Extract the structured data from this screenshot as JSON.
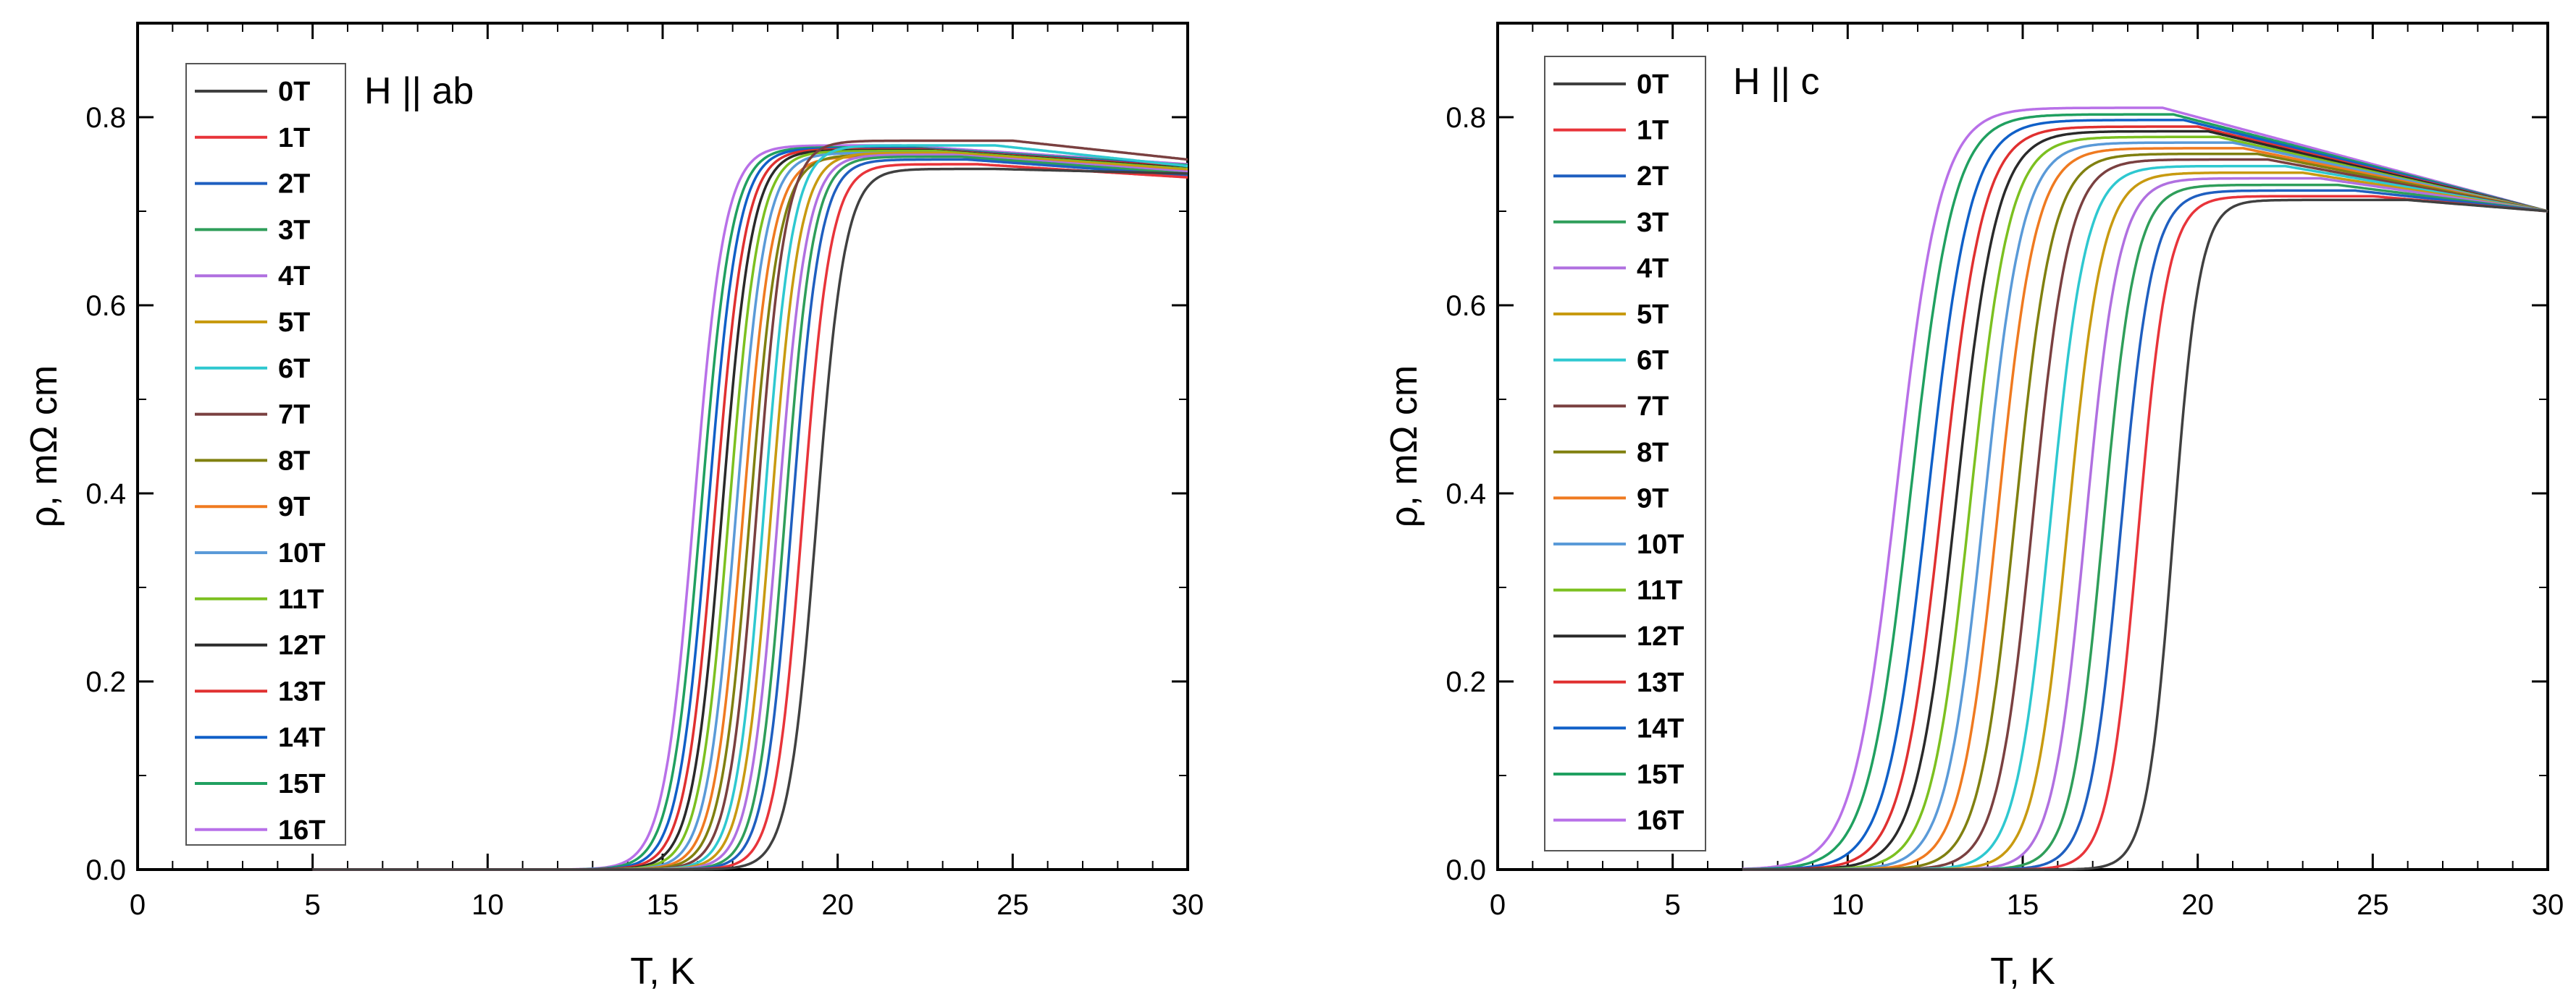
{
  "chart_data": [
    {
      "type": "line",
      "panel_id": "left",
      "title": "H || ab",
      "xlabel": "T, K",
      "ylabel": "ρ, mΩ cm",
      "xlim": [
        0,
        30
      ],
      "ylim": [
        0,
        0.9
      ],
      "xticks": [
        0,
        5,
        10,
        15,
        20,
        25,
        30
      ],
      "yticks": [
        0.0,
        0.2,
        0.4,
        0.6,
        0.8
      ],
      "xtick_labels": [
        "0",
        "5",
        "10",
        "15",
        "20",
        "25",
        "30"
      ],
      "ytick_labels": [
        "0.0",
        "0.2",
        "0.4",
        "0.6",
        "0.8"
      ],
      "legend_position": "top-left",
      "x_start": 5,
      "x_end": 30,
      "series": [
        {
          "name": "0T",
          "color": "#404040",
          "Tc": 19.4,
          "w": 0.8,
          "ymax": 0.745,
          "Tp": 24.5,
          "tail": 0.74
        },
        {
          "name": "1T",
          "color": "#e8343a",
          "Tc": 19.0,
          "w": 0.8,
          "ymax": 0.75,
          "Tp": 24.0,
          "tail": 0.736
        },
        {
          "name": "2T",
          "color": "#1f5fc0",
          "Tc": 18.7,
          "w": 0.8,
          "ymax": 0.755,
          "Tp": 23.7,
          "tail": 0.738
        },
        {
          "name": "3T",
          "color": "#2f9e5a",
          "Tc": 18.5,
          "w": 0.8,
          "ymax": 0.758,
          "Tp": 23.5,
          "tail": 0.74
        },
        {
          "name": "4T",
          "color": "#b070e0",
          "Tc": 18.3,
          "w": 0.82,
          "ymax": 0.76,
          "Tp": 23.3,
          "tail": 0.742
        },
        {
          "name": "5T",
          "color": "#c89a10",
          "Tc": 18.1,
          "w": 0.82,
          "ymax": 0.762,
          "Tp": 23.1,
          "tail": 0.744
        },
        {
          "name": "6T",
          "color": "#2ec8d0",
          "Tc": 17.9,
          "w": 0.82,
          "ymax": 0.77,
          "Tp": 24.5,
          "tail": 0.748
        },
        {
          "name": "7T",
          "color": "#7a4040",
          "Tc": 17.7,
          "w": 0.82,
          "ymax": 0.775,
          "Tp": 25.0,
          "tail": 0.755
        },
        {
          "name": "8T",
          "color": "#808010",
          "Tc": 17.5,
          "w": 0.84,
          "ymax": 0.76,
          "Tp": 24.0,
          "tail": 0.74
        },
        {
          "name": "9T",
          "color": "#ef7a20",
          "Tc": 17.3,
          "w": 0.84,
          "ymax": 0.758,
          "Tp": 23.5,
          "tail": 0.742
        },
        {
          "name": "10T",
          "color": "#5a9ad8",
          "Tc": 17.1,
          "w": 0.84,
          "ymax": 0.762,
          "Tp": 23.0,
          "tail": 0.744
        },
        {
          "name": "11T",
          "color": "#7cc020",
          "Tc": 16.9,
          "w": 0.85,
          "ymax": 0.764,
          "Tp": 22.8,
          "tail": 0.745
        },
        {
          "name": "12T",
          "color": "#2a2a2a",
          "Tc": 16.7,
          "w": 0.85,
          "ymax": 0.765,
          "Tp": 22.6,
          "tail": 0.746
        },
        {
          "name": "13T",
          "color": "#e03030",
          "Tc": 16.5,
          "w": 0.86,
          "ymax": 0.766,
          "Tp": 22.4,
          "tail": 0.747
        },
        {
          "name": "14T",
          "color": "#1060c8",
          "Tc": 16.3,
          "w": 0.86,
          "ymax": 0.767,
          "Tp": 22.2,
          "tail": 0.748
        },
        {
          "name": "15T",
          "color": "#20a060",
          "Tc": 16.1,
          "w": 0.87,
          "ymax": 0.768,
          "Tp": 22.0,
          "tail": 0.749
        },
        {
          "name": "16T",
          "color": "#b870e8",
          "Tc": 15.9,
          "w": 0.87,
          "ymax": 0.77,
          "Tp": 21.8,
          "tail": 0.75
        }
      ]
    },
    {
      "type": "line",
      "panel_id": "right",
      "title": "H || c",
      "xlabel": "T, K",
      "ylabel": "ρ, mΩ cm",
      "xlim": [
        0,
        30
      ],
      "ylim": [
        0,
        0.9
      ],
      "xticks": [
        0,
        5,
        10,
        15,
        20,
        25,
        30
      ],
      "yticks": [
        0.0,
        0.2,
        0.4,
        0.6,
        0.8
      ],
      "xtick_labels": [
        "0",
        "5",
        "10",
        "15",
        "20",
        "25",
        "30"
      ],
      "ytick_labels": [
        "0.0",
        "0.2",
        "0.4",
        "0.6",
        "0.8"
      ],
      "legend_position": "top-left",
      "x_start": 7,
      "x_end": 30,
      "series": [
        {
          "name": "0T",
          "color": "#404040",
          "Tc": 19.3,
          "w": 0.75,
          "ymax": 0.712,
          "Tp": 26.0,
          "tail": 0.7
        },
        {
          "name": "1T",
          "color": "#e8343a",
          "Tc": 18.3,
          "w": 0.85,
          "ymax": 0.716,
          "Tp": 25.0,
          "tail": 0.7
        },
        {
          "name": "2T",
          "color": "#1f5fc0",
          "Tc": 17.8,
          "w": 0.9,
          "ymax": 0.722,
          "Tp": 24.5,
          "tail": 0.7
        },
        {
          "name": "3T",
          "color": "#2f9e5a",
          "Tc": 17.3,
          "w": 0.92,
          "ymax": 0.728,
          "Tp": 24.0,
          "tail": 0.7
        },
        {
          "name": "4T",
          "color": "#b070e0",
          "Tc": 16.8,
          "w": 0.95,
          "ymax": 0.735,
          "Tp": 23.5,
          "tail": 0.7
        },
        {
          "name": "5T",
          "color": "#c89a10",
          "Tc": 16.3,
          "w": 0.98,
          "ymax": 0.741,
          "Tp": 23.0,
          "tail": 0.7
        },
        {
          "name": "6T",
          "color": "#2ec8d0",
          "Tc": 15.8,
          "w": 1.0,
          "ymax": 0.748,
          "Tp": 22.5,
          "tail": 0.7
        },
        {
          "name": "7T",
          "color": "#7a4040",
          "Tc": 15.3,
          "w": 1.02,
          "ymax": 0.755,
          "Tp": 22.0,
          "tail": 0.7
        },
        {
          "name": "8T",
          "color": "#808010",
          "Tc": 14.8,
          "w": 1.05,
          "ymax": 0.761,
          "Tp": 21.7,
          "tail": 0.7
        },
        {
          "name": "9T",
          "color": "#ef7a20",
          "Tc": 14.3,
          "w": 1.07,
          "ymax": 0.767,
          "Tp": 21.3,
          "tail": 0.7
        },
        {
          "name": "10T",
          "color": "#5a9ad8",
          "Tc": 13.9,
          "w": 1.1,
          "ymax": 0.773,
          "Tp": 21.0,
          "tail": 0.7
        },
        {
          "name": "11T",
          "color": "#7cc020",
          "Tc": 13.5,
          "w": 1.12,
          "ymax": 0.779,
          "Tp": 20.6,
          "tail": 0.7
        },
        {
          "name": "12T",
          "color": "#2a2a2a",
          "Tc": 13.1,
          "w": 1.15,
          "ymax": 0.785,
          "Tp": 20.3,
          "tail": 0.7
        },
        {
          "name": "13T",
          "color": "#e03030",
          "Tc": 12.7,
          "w": 1.17,
          "ymax": 0.79,
          "Tp": 20.0,
          "tail": 0.7
        },
        {
          "name": "14T",
          "color": "#1060c8",
          "Tc": 12.3,
          "w": 1.2,
          "ymax": 0.797,
          "Tp": 19.6,
          "tail": 0.7
        },
        {
          "name": "15T",
          "color": "#20a060",
          "Tc": 11.8,
          "w": 1.22,
          "ymax": 0.803,
          "Tp": 19.3,
          "tail": 0.7
        },
        {
          "name": "16T",
          "color": "#b870e8",
          "Tc": 11.4,
          "w": 1.25,
          "ymax": 0.81,
          "Tp": 19.0,
          "tail": 0.7
        }
      ]
    }
  ]
}
